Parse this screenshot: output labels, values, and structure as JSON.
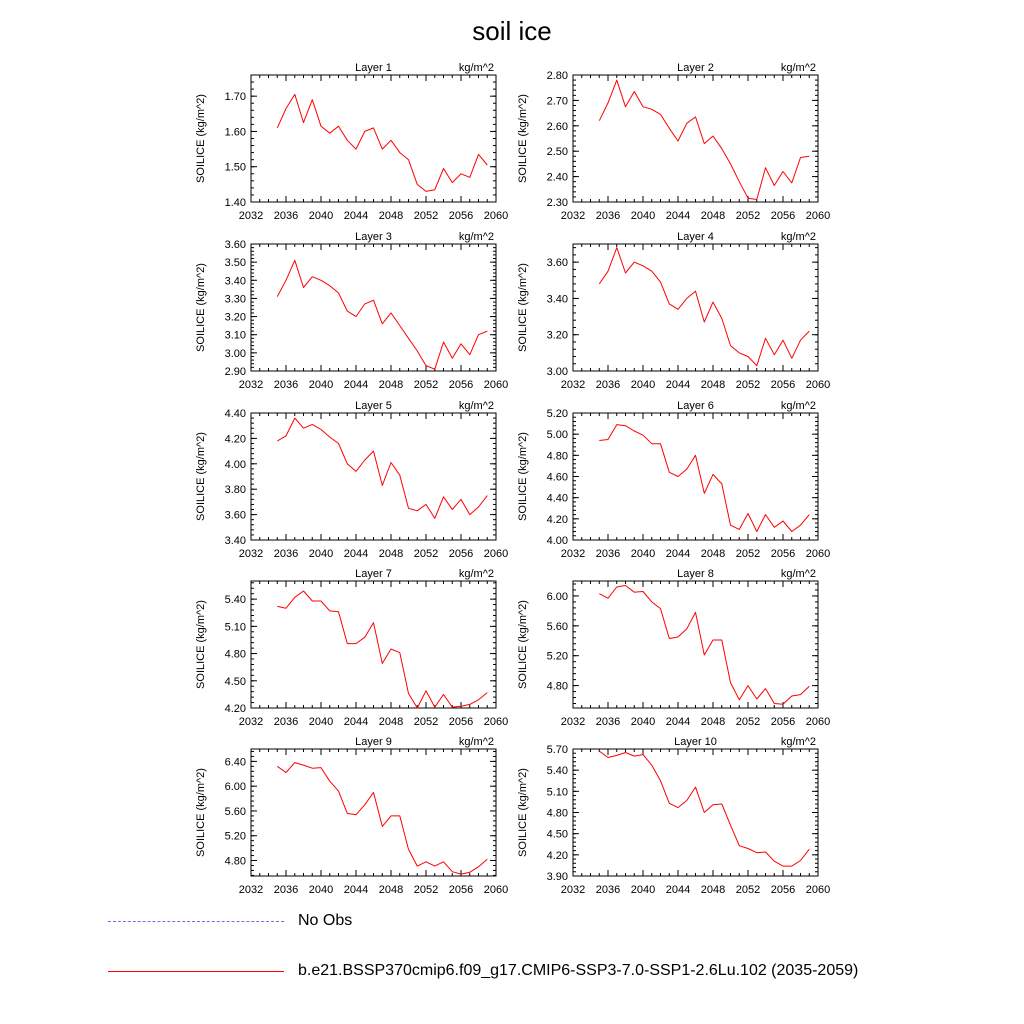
{
  "title": "soil ice",
  "chart_data": {
    "type": "line",
    "xlim": [
      2032,
      2060
    ],
    "x_ticks": [
      2032,
      2036,
      2040,
      2044,
      2048,
      2052,
      2056,
      2060
    ],
    "x": [
      2035,
      2036,
      2037,
      2038,
      2039,
      2040,
      2041,
      2042,
      2043,
      2044,
      2045,
      2046,
      2047,
      2048,
      2049,
      2050,
      2051,
      2052,
      2053,
      2054,
      2055,
      2056,
      2057,
      2058,
      2059
    ],
    "ylabel": "SOILICE  (kg/m^2)",
    "units": "kg/m^2",
    "line_color": "#ff0000",
    "panels": [
      {
        "name": "Layer 1",
        "ylim": [
          1.4,
          1.76
        ],
        "y_ticks": [
          "1.40",
          "1.50",
          "1.60",
          "1.70"
        ],
        "y_tick_values": [
          1.4,
          1.5,
          1.6,
          1.7
        ],
        "values": [
          1.61,
          1.665,
          1.705,
          1.625,
          1.69,
          1.615,
          1.595,
          1.615,
          1.575,
          1.55,
          1.6,
          1.61,
          1.55,
          1.575,
          1.54,
          1.52,
          1.45,
          1.43,
          1.435,
          1.495,
          1.455,
          1.48,
          1.47,
          1.535,
          1.505
        ]
      },
      {
        "name": "Layer 2",
        "ylim": [
          2.3,
          2.8
        ],
        "y_ticks": [
          "2.30",
          "2.40",
          "2.50",
          "2.60",
          "2.70",
          "2.80"
        ],
        "y_tick_values": [
          2.3,
          2.4,
          2.5,
          2.6,
          2.7,
          2.8
        ],
        "values": [
          2.62,
          2.69,
          2.78,
          2.675,
          2.735,
          2.675,
          2.665,
          2.645,
          2.59,
          2.54,
          2.61,
          2.635,
          2.53,
          2.56,
          2.51,
          2.45,
          2.38,
          2.315,
          2.31,
          2.435,
          2.365,
          2.42,
          2.375,
          2.475,
          2.48
        ]
      },
      {
        "name": "Layer 3",
        "ylim": [
          2.9,
          3.6
        ],
        "y_ticks": [
          "2.90",
          "3.00",
          "3.10",
          "3.20",
          "3.30",
          "3.40",
          "3.50",
          "3.60"
        ],
        "y_tick_values": [
          2.9,
          3.0,
          3.1,
          3.2,
          3.3,
          3.4,
          3.5,
          3.6
        ],
        "values": [
          3.31,
          3.4,
          3.51,
          3.36,
          3.42,
          3.4,
          3.37,
          3.33,
          3.23,
          3.2,
          3.27,
          3.29,
          3.16,
          3.22,
          3.15,
          3.08,
          3.01,
          2.93,
          2.91,
          3.06,
          2.97,
          3.05,
          2.99,
          3.1,
          3.12
        ]
      },
      {
        "name": "Layer 4",
        "ylim": [
          3.0,
          3.7
        ],
        "y_ticks": [
          "3.00",
          "3.20",
          "3.40",
          "3.60"
        ],
        "y_tick_values": [
          3.0,
          3.2,
          3.4,
          3.6
        ],
        "values": [
          3.48,
          3.55,
          3.68,
          3.54,
          3.6,
          3.58,
          3.55,
          3.49,
          3.37,
          3.34,
          3.4,
          3.44,
          3.27,
          3.38,
          3.29,
          3.14,
          3.1,
          3.08,
          3.03,
          3.18,
          3.09,
          3.17,
          3.07,
          3.17,
          3.22
        ]
      },
      {
        "name": "Layer 5",
        "ylim": [
          3.4,
          4.4
        ],
        "y_ticks": [
          "3.40",
          "3.60",
          "3.80",
          "4.00",
          "4.20",
          "4.40"
        ],
        "y_tick_values": [
          3.4,
          3.6,
          3.8,
          4.0,
          4.2,
          4.4
        ],
        "values": [
          4.18,
          4.22,
          4.36,
          4.28,
          4.31,
          4.27,
          4.21,
          4.16,
          4.0,
          3.94,
          4.03,
          4.1,
          3.83,
          4.01,
          3.91,
          3.65,
          3.63,
          3.68,
          3.57,
          3.74,
          3.64,
          3.72,
          3.6,
          3.66,
          3.75
        ]
      },
      {
        "name": "Layer 6",
        "ylim": [
          4.0,
          5.2
        ],
        "y_ticks": [
          "4.00",
          "4.20",
          "4.40",
          "4.60",
          "4.80",
          "5.00",
          "5.20"
        ],
        "y_tick_values": [
          4.0,
          4.2,
          4.4,
          4.6,
          4.8,
          5.0,
          5.2
        ],
        "values": [
          4.94,
          4.95,
          5.09,
          5.08,
          5.03,
          4.99,
          4.91,
          4.91,
          4.64,
          4.6,
          4.67,
          4.8,
          4.44,
          4.62,
          4.53,
          4.14,
          4.1,
          4.25,
          4.08,
          4.24,
          4.12,
          4.18,
          4.08,
          4.14,
          4.24
        ]
      },
      {
        "name": "Layer 7",
        "ylim": [
          4.2,
          5.6
        ],
        "y_ticks": [
          "4.20",
          "4.50",
          "4.80",
          "5.10",
          "5.40"
        ],
        "y_tick_values": [
          4.2,
          4.5,
          4.8,
          5.1,
          5.4
        ],
        "values": [
          5.32,
          5.3,
          5.42,
          5.49,
          5.38,
          5.38,
          5.27,
          5.26,
          4.91,
          4.91,
          4.98,
          5.14,
          4.69,
          4.85,
          4.81,
          4.36,
          4.2,
          4.39,
          4.21,
          4.35,
          4.21,
          4.22,
          4.24,
          4.29,
          4.37
        ]
      },
      {
        "name": "Layer 8",
        "ylim": [
          4.5,
          6.2
        ],
        "y_ticks": [
          "4.80",
          "5.20",
          "5.60",
          "6.00"
        ],
        "y_tick_values": [
          4.8,
          5.2,
          5.6,
          6.0
        ],
        "values": [
          6.03,
          5.97,
          6.12,
          6.14,
          6.05,
          6.06,
          5.92,
          5.83,
          5.43,
          5.45,
          5.56,
          5.78,
          5.21,
          5.41,
          5.41,
          4.84,
          4.61,
          4.8,
          4.62,
          4.76,
          4.56,
          4.55,
          4.66,
          4.68,
          4.79
        ]
      },
      {
        "name": "Layer 9",
        "ylim": [
          4.55,
          6.6
        ],
        "y_ticks": [
          "4.80",
          "5.20",
          "5.60",
          "6.00",
          "6.40"
        ],
        "y_tick_values": [
          4.8,
          5.2,
          5.6,
          6.0,
          6.4
        ],
        "values": [
          6.32,
          6.22,
          6.38,
          6.34,
          6.29,
          6.3,
          6.08,
          5.92,
          5.56,
          5.54,
          5.7,
          5.9,
          5.35,
          5.52,
          5.52,
          4.98,
          4.71,
          4.78,
          4.71,
          4.78,
          4.62,
          4.58,
          4.61,
          4.7,
          4.82
        ]
      },
      {
        "name": "Layer 10",
        "ylim": [
          3.9,
          5.7
        ],
        "y_ticks": [
          "3.90",
          "4.20",
          "4.50",
          "4.80",
          "5.10",
          "5.40",
          "5.70"
        ],
        "y_tick_values": [
          3.9,
          4.2,
          4.5,
          4.8,
          5.1,
          5.4,
          5.7
        ],
        "values": [
          5.67,
          5.58,
          5.61,
          5.65,
          5.6,
          5.62,
          5.47,
          5.25,
          4.93,
          4.87,
          4.97,
          5.16,
          4.8,
          4.91,
          4.92,
          4.62,
          4.33,
          4.29,
          4.23,
          4.24,
          4.11,
          4.04,
          4.04,
          4.12,
          4.28
        ]
      }
    ],
    "legend": {
      "placement": "bottom",
      "entries": [
        {
          "label": "No Obs",
          "style": "dashed",
          "color": "#6d6df6"
        },
        {
          "label": "b.e21.BSSP370cmip6.f09_g17.CMIP6-SSP3-7.0-SSP1-2.6Lu.102 (2035-2059)",
          "style": "solid",
          "color": "#ff0000"
        }
      ]
    }
  }
}
